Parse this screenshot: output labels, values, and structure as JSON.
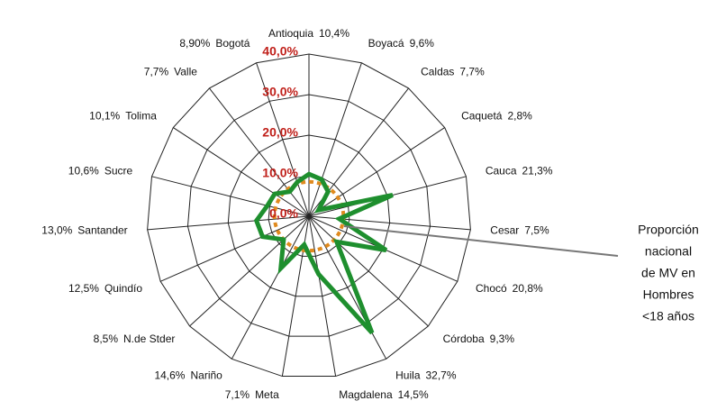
{
  "chart_data": {
    "type": "radar",
    "categories": [
      "Antioquia",
      "Boyacá",
      "Caldas",
      "Caquetá",
      "Cauca",
      "Cesar",
      "Chocó",
      "Córdoba",
      "Huila",
      "Magdalena",
      "Meta",
      "Nariño",
      "N.de Stder",
      "Quindío",
      "Santander",
      "Sucre",
      "Tolima",
      "Valle",
      "Bogotá"
    ],
    "series": [
      {
        "color": "#1e8f2e",
        "values": [
          10.4,
          9.6,
          7.7,
          2.8,
          21.3,
          7.5,
          20.8,
          9.3,
          32.7,
          14.5,
          7.1,
          14.6,
          8.5,
          12.5,
          13.0,
          10.6,
          10.1,
          7.7,
          8.9
        ],
        "value_labels": [
          "10,4%",
          "9,6%",
          "7,7%",
          "2,8%",
          "21,3%",
          "7,5%",
          "20,8%",
          "9,3%",
          "32,7%",
          "14,5%",
          "7,1%",
          "14,6%",
          "8,5%",
          "12,5%",
          "13,0%",
          "10,6%",
          "10,1%",
          "7,7%",
          "8,90%"
        ]
      }
    ],
    "rlim": [
      0,
      40
    ],
    "rticks": [
      {
        "value": 0,
        "label": "0,0%"
      },
      {
        "value": 10,
        "label": "10,0%"
      },
      {
        "value": 20,
        "label": "20,0%"
      },
      {
        "value": 30,
        "label": "30,0%"
      },
      {
        "value": 40,
        "label": "40,0%"
      }
    ],
    "reference": {
      "value": 8.5,
      "color": "#e08a1e"
    },
    "annotation": [
      "Proporción",
      "nacional",
      "de MV en",
      "Hombres",
      "<18 años"
    ]
  }
}
